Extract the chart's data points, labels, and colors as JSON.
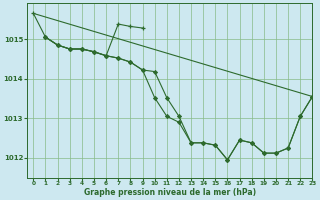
{
  "bg_color": "#cde8f0",
  "grid_color": "#88bb88",
  "line_color": "#2d6a2d",
  "xlabel": "Graphe pression niveau de la mer (hPa)",
  "xlim": [
    -0.5,
    23
  ],
  "ylim": [
    1011.5,
    1015.9
  ],
  "yticks": [
    1012,
    1013,
    1014,
    1015
  ],
  "xticks": [
    0,
    1,
    2,
    3,
    4,
    5,
    6,
    7,
    8,
    9,
    10,
    11,
    12,
    13,
    14,
    15,
    16,
    17,
    18,
    19,
    20,
    21,
    22,
    23
  ],
  "straight_line": {
    "x": [
      0,
      23
    ],
    "y": [
      1015.65,
      1013.55
    ]
  },
  "series_plus": {
    "x": [
      0,
      1,
      2,
      3,
      4,
      5,
      6,
      7,
      8,
      9
    ],
    "y": [
      1015.65,
      1015.05,
      1014.85,
      1014.75,
      1014.75,
      1014.68,
      1014.58,
      1015.38,
      1015.32,
      1015.28
    ]
  },
  "series_main1": {
    "x": [
      1,
      2,
      3,
      4,
      5,
      6,
      7,
      8,
      9,
      10,
      11,
      12,
      13,
      14,
      15,
      16,
      17,
      18,
      19,
      20,
      21,
      22,
      23
    ],
    "y": [
      1015.05,
      1014.85,
      1014.75,
      1014.75,
      1014.68,
      1014.58,
      1014.52,
      1014.42,
      1014.22,
      1014.18,
      1013.52,
      1013.05,
      1012.38,
      1012.38,
      1012.32,
      1011.95,
      1012.45,
      1012.38,
      1012.12,
      1012.12,
      1012.25,
      1013.05,
      1013.55
    ]
  },
  "series_main2": {
    "x": [
      1,
      2,
      3,
      4,
      5,
      6,
      7,
      8,
      9,
      10,
      11,
      12,
      13,
      14,
      15,
      16,
      17,
      18,
      19,
      20,
      21,
      22,
      23
    ],
    "y": [
      1015.05,
      1014.85,
      1014.75,
      1014.75,
      1014.68,
      1014.58,
      1014.52,
      1014.42,
      1014.22,
      1013.52,
      1013.05,
      1012.9,
      1012.38,
      1012.38,
      1012.32,
      1011.95,
      1012.45,
      1012.38,
      1012.12,
      1012.12,
      1012.25,
      1013.05,
      1013.55
    ]
  }
}
